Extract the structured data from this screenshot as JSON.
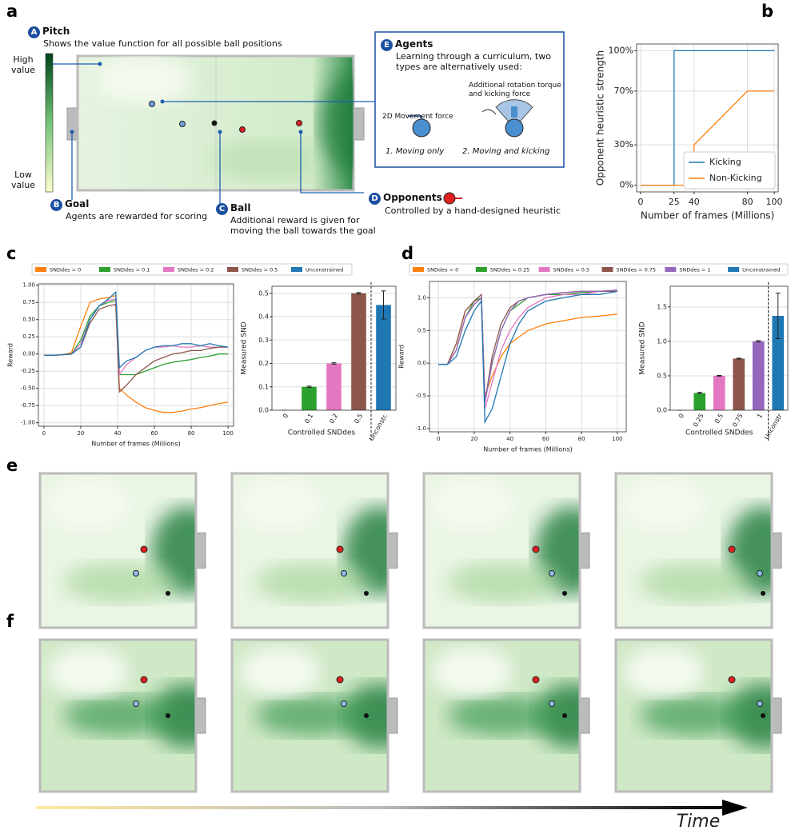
{
  "panel_labels": [
    "a",
    "b",
    "c",
    "d",
    "e",
    "f"
  ],
  "time_label": "Time",
  "diagram": {
    "pitch": {
      "badge": "A",
      "title": "Pitch",
      "text": "Shows the value function for all possible ball positions"
    },
    "colorbar": {
      "high": "High value",
      "low": "Low value"
    },
    "goal": {
      "badge": "B",
      "title": "Goal",
      "text": "Agents are rewarded for scoring"
    },
    "ball": {
      "badge": "C",
      "title": "Ball",
      "text": "Additional reward is given for moving the ball towards the goal"
    },
    "opponents": {
      "badge": "D",
      "title": "Opponents",
      "text": "Controlled by a hand-designed heuristic"
    },
    "agents": {
      "badge": "E",
      "title": "Agents",
      "text": "Learning through a curriculum, two types are alternatively used:",
      "type1_force": "2D Movement force",
      "type2_force": "Additional rotation torque and kicking force",
      "type1": "1. Moving only",
      "type2": "2. Moving and kicking"
    }
  },
  "chart_data": [
    {
      "type": "line",
      "xlabel": "Number of frames (Millions)",
      "ylabel": "Opponent heuristic strength",
      "xlim": [
        -3,
        103
      ],
      "xticks": [
        0,
        25,
        40,
        80,
        100
      ],
      "ylim": [
        -5,
        105
      ],
      "yticks": [
        {
          "value": 0,
          "label": "0%"
        },
        {
          "value": 30,
          "label": "30%"
        },
        {
          "value": 70,
          "label": "70%"
        },
        {
          "value": 100,
          "label": "100%"
        }
      ],
      "grid": true,
      "legend": "lower right",
      "series": [
        {
          "name": "Kicking",
          "color": "#1f77b4",
          "x": [
            0,
            25,
            25,
            100
          ],
          "values": [
            0,
            0,
            100,
            100
          ]
        },
        {
          "name": "Non-Kicking",
          "color": "#ff7f0e",
          "x": [
            0,
            40,
            40,
            80,
            100
          ],
          "values": [
            0,
            0,
            30,
            70,
            70
          ]
        }
      ]
    },
    {
      "type": "line",
      "xlabel": "Number of frames (Millions)",
      "ylabel": "Reward",
      "xlim": [
        -3,
        103
      ],
      "xticks": [
        0,
        20,
        40,
        60,
        80,
        100
      ],
      "ylim": [
        -1.05,
        1.02
      ],
      "yticks": [
        {
          "value": -1,
          "label": "-1.00"
        },
        {
          "value": -0.75,
          "label": "-0.75"
        },
        {
          "value": -0.5,
          "label": "-0.50"
        },
        {
          "value": -0.25,
          "label": "-0.25"
        },
        {
          "value": 0,
          "label": "0.00"
        },
        {
          "value": 0.25,
          "label": "0.25"
        },
        {
          "value": 0.5,
          "label": "0.50"
        },
        {
          "value": 0.75,
          "label": "0.75"
        },
        {
          "value": 1,
          "label": "1.00"
        }
      ],
      "grid": true,
      "legend": "above",
      "series": [
        {
          "name": "SNDdes = 0",
          "color": "#ff7f0e",
          "x": [
            0,
            5,
            10,
            15,
            20,
            25,
            30,
            35,
            39,
            41,
            45,
            50,
            55,
            60,
            65,
            70,
            75,
            80,
            85,
            90,
            95,
            100
          ],
          "values": [
            -0.02,
            -0.02,
            -0.01,
            0.02,
            0.4,
            0.75,
            0.8,
            0.82,
            0.85,
            -0.5,
            -0.6,
            -0.7,
            -0.78,
            -0.82,
            -0.85,
            -0.85,
            -0.83,
            -0.8,
            -0.78,
            -0.75,
            -0.72,
            -0.7
          ]
        },
        {
          "name": "SNDdes = 0.1",
          "color": "#2ca02c",
          "x": [
            0,
            5,
            10,
            15,
            20,
            25,
            30,
            35,
            39,
            41,
            45,
            50,
            55,
            60,
            65,
            70,
            75,
            80,
            85,
            90,
            95,
            100
          ],
          "values": [
            -0.02,
            -0.02,
            -0.01,
            0,
            0.2,
            0.55,
            0.7,
            0.75,
            0.78,
            -0.3,
            -0.3,
            -0.3,
            -0.25,
            -0.2,
            -0.15,
            -0.12,
            -0.1,
            -0.08,
            -0.05,
            -0.03,
            0,
            0
          ]
        },
        {
          "name": "SNDdes = 0.2",
          "color": "#e377c2",
          "x": [
            0,
            5,
            10,
            15,
            20,
            25,
            30,
            35,
            39,
            41,
            45,
            50,
            55,
            60,
            65,
            70,
            75,
            80,
            85,
            90,
            95,
            100
          ],
          "values": [
            -0.02,
            -0.02,
            -0.01,
            0,
            0.15,
            0.5,
            0.7,
            0.78,
            0.8,
            -0.3,
            -0.15,
            -0.05,
            0.05,
            0.1,
            0.1,
            0.12,
            0.1,
            0.1,
            0.12,
            0.1,
            0.1,
            0.1
          ]
        },
        {
          "name": "SNDdes = 0.5",
          "color": "#8c564b",
          "x": [
            0,
            5,
            10,
            15,
            20,
            25,
            30,
            35,
            39,
            41,
            45,
            50,
            55,
            60,
            65,
            70,
            75,
            80,
            85,
            90,
            95,
            100
          ],
          "values": [
            -0.02,
            -0.02,
            -0.01,
            0,
            0.1,
            0.45,
            0.65,
            0.7,
            0.72,
            -0.55,
            -0.45,
            -0.3,
            -0.2,
            -0.1,
            -0.05,
            0,
            0.02,
            0.05,
            0.05,
            0.08,
            0.1,
            0.1
          ]
        },
        {
          "name": "Unconstrained",
          "color": "#1f77b4",
          "x": [
            0,
            5,
            10,
            15,
            20,
            25,
            30,
            35,
            39,
            41,
            45,
            50,
            55,
            60,
            65,
            70,
            75,
            80,
            85,
            90,
            95,
            100
          ],
          "values": [
            -0.02,
            -0.02,
            -0.01,
            0,
            0.1,
            0.5,
            0.7,
            0.8,
            0.9,
            -0.2,
            -0.1,
            -0.05,
            0.05,
            0.1,
            0.12,
            0.12,
            0.15,
            0.15,
            0.12,
            0.15,
            0.12,
            0.1
          ]
        }
      ]
    },
    {
      "type": "bar",
      "xlabel": "Controlled SNDdes",
      "ylabel": "Measured SND",
      "categories": [
        "0",
        "0.1",
        "0.2",
        "0.5",
        "Unconstr."
      ],
      "values": [
        0,
        0.1,
        0.2,
        0.5,
        0.45
      ],
      "errors": [
        0,
        0.003,
        0.003,
        0.003,
        0.06
      ],
      "colors": [
        "#ff7f0e",
        "#2ca02c",
        "#e377c2",
        "#8c564b",
        "#1f77b4"
      ],
      "ylim": [
        0,
        0.53
      ],
      "yticks": [
        {
          "value": 0,
          "label": "0.0"
        },
        0.1,
        0.2,
        0.3,
        0.4,
        0.5
      ],
      "grid": true
    },
    {
      "type": "line",
      "xlabel": "Number of frames (Millions)",
      "ylabel": "Reward",
      "xlim": [
        -5,
        105
      ],
      "xticks": [
        0,
        20,
        40,
        60,
        80,
        100
      ],
      "ylim": [
        -1.05,
        1.25
      ],
      "yticks": [
        {
          "value": -1,
          "label": "-1.0"
        },
        -0.5,
        {
          "value": 0,
          "label": "0.0"
        },
        0.5,
        {
          "value": 1,
          "label": "1.0"
        }
      ],
      "grid": true,
      "legend": "above",
      "series": [
        {
          "name": "SNDdes = 0",
          "color": "#ff7f0e",
          "x": [
            0,
            5,
            10,
            15,
            20,
            24,
            26,
            30,
            35,
            40,
            45,
            50,
            60,
            70,
            80,
            90,
            100
          ],
          "values": [
            -0.02,
            -0.02,
            0.3,
            0.8,
            0.95,
            1,
            -0.5,
            -0.2,
            0.1,
            0.3,
            0.4,
            0.5,
            0.6,
            0.65,
            0.7,
            0.72,
            0.75
          ]
        },
        {
          "name": "SNDdes = 0.25",
          "color": "#2ca02c",
          "x": [
            0,
            5,
            10,
            15,
            20,
            24,
            26,
            30,
            35,
            40,
            45,
            50,
            60,
            70,
            80,
            90,
            100
          ],
          "values": [
            -0.02,
            -0.02,
            0.2,
            0.7,
            0.95,
            1,
            -0.6,
            0,
            0.5,
            0.8,
            0.9,
            1,
            1.05,
            1.05,
            1.08,
            1.1,
            1.1
          ]
        },
        {
          "name": "SNDdes = 0.5",
          "color": "#e377c2",
          "x": [
            0,
            5,
            10,
            15,
            20,
            24,
            26,
            30,
            35,
            40,
            45,
            50,
            60,
            70,
            80,
            90,
            100
          ],
          "values": [
            -0.02,
            -0.02,
            0.2,
            0.7,
            0.9,
            1,
            -0.7,
            -0.3,
            0.2,
            0.5,
            0.7,
            0.85,
            1,
            1.05,
            1.05,
            1.1,
            1.1
          ]
        },
        {
          "name": "SNDdes = 0.75",
          "color": "#8c564b",
          "x": [
            0,
            5,
            10,
            15,
            20,
            24,
            26,
            30,
            35,
            40,
            45,
            50,
            60,
            70,
            80,
            90,
            100
          ],
          "values": [
            -0.02,
            -0.02,
            0.3,
            0.8,
            0.95,
            1.05,
            -0.6,
            0.1,
            0.6,
            0.85,
            0.95,
            1,
            1.05,
            1.08,
            1.1,
            1.1,
            1.1
          ]
        },
        {
          "name": "SNDdes = 1",
          "color": "#9467bd",
          "x": [
            0,
            5,
            10,
            15,
            20,
            24,
            26,
            30,
            35,
            40,
            45,
            50,
            60,
            70,
            80,
            90,
            100
          ],
          "values": [
            -0.02,
            -0.02,
            0.2,
            0.7,
            0.9,
            1,
            -0.6,
            0,
            0.5,
            0.8,
            0.95,
            1,
            1.05,
            1.08,
            1.1,
            1.1,
            1.12
          ]
        },
        {
          "name": "Unconstrained",
          "color": "#1f77b4",
          "x": [
            0,
            5,
            10,
            15,
            20,
            24,
            26,
            30,
            35,
            40,
            45,
            50,
            60,
            70,
            80,
            90,
            100
          ],
          "values": [
            -0.02,
            -0.02,
            0.1,
            0.5,
            0.8,
            0.95,
            -0.9,
            -0.7,
            -0.2,
            0.3,
            0.6,
            0.8,
            0.95,
            1,
            1.05,
            1.05,
            1.1
          ]
        }
      ]
    },
    {
      "type": "bar",
      "xlabel": "Controlled SNDdes",
      "ylabel": "Measured SND",
      "categories": [
        "0",
        "0.25",
        "0.5",
        "0.75",
        "1",
        "Unconstr"
      ],
      "values": [
        0,
        0.25,
        0.5,
        0.75,
        1,
        1.37
      ],
      "errors": [
        0,
        0.01,
        0.005,
        0.005,
        0.01,
        0.33
      ],
      "colors": [
        "#ff7f0e",
        "#2ca02c",
        "#e377c2",
        "#8c564b",
        "#9467bd",
        "#1f77b4"
      ],
      "ylim": [
        0,
        1.8
      ],
      "yticks": [
        {
          "value": 0,
          "label": "0.0"
        },
        0.5,
        {
          "value": 1,
          "label": "1.0"
        },
        1.5
      ],
      "grid": true
    }
  ]
}
